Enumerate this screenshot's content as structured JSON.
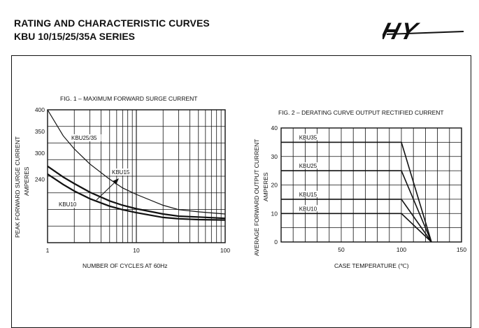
{
  "header": {
    "title": "RATING AND CHARACTERISTIC CURVES",
    "series": "KBU 10/15/25/35A  SERIES",
    "logo_text": "HY"
  },
  "chart_data": [
    {
      "type": "line",
      "title": "FIG. 1 – MAXIMUM FORWARD SURGE CURRENT",
      "xlabel": "NUMBER OF CYCLES AT 60Hz",
      "ylabel_line1": "PEAK FORWARD SURGE CURRENT",
      "ylabel_line2": "AMPERES",
      "x_scale": "log",
      "xlim": [
        1,
        100
      ],
      "x_ticks": [
        "1",
        "10",
        "100"
      ],
      "y_ticks": [
        {
          "label": "400",
          "value": 400
        },
        {
          "label": "350",
          "value": 350
        },
        {
          "label": "300",
          "value": 300
        },
        {
          "label": "240",
          "value": 240
        }
      ],
      "grid": true,
      "series": [
        {
          "name": "KBU25/35",
          "x": [
            1,
            1.5,
            2,
            3,
            5,
            7,
            10,
            20,
            30,
            50,
            100
          ],
          "y": [
            400,
            340,
            310,
            275,
            240,
            220,
            205,
            180,
            170,
            165,
            160
          ]
        },
        {
          "name": "KBU15",
          "x": [
            1,
            1.5,
            2,
            3,
            5,
            7,
            10,
            20,
            30,
            50,
            100
          ],
          "y": [
            270,
            245,
            230,
            210,
            190,
            180,
            172,
            160,
            155,
            153,
            150
          ]
        },
        {
          "name": "KBU10",
          "x": [
            1,
            1.5,
            2,
            3,
            5,
            7,
            10,
            20,
            30,
            50,
            100
          ],
          "y": [
            252,
            228,
            213,
            195,
            178,
            170,
            163,
            152,
            149,
            147,
            146
          ]
        }
      ],
      "annotations": [
        "KBU25/35",
        "KBU15",
        "KBU10"
      ]
    },
    {
      "type": "line",
      "title": "FIG. 2 – DERATING CURVE OUTPUT RECTIFIED CURRENT",
      "xlabel": "CASE TEMPERATURE (℃)",
      "ylabel_line1": "AVERAGE FORWARD OUTPUT  CURRENT",
      "ylabel_line2": "AMPERES",
      "xlim": [
        0,
        150
      ],
      "ylim": [
        0,
        40
      ],
      "x_ticks": [
        "0",
        "50",
        "100",
        "150"
      ],
      "y_ticks": [
        "0",
        "10",
        "20",
        "30",
        "40"
      ],
      "grid": true,
      "series": [
        {
          "name": "KBU35",
          "x": [
            0,
            100,
            125
          ],
          "y": [
            35,
            35,
            0
          ]
        },
        {
          "name": "KBU25",
          "x": [
            0,
            100,
            125
          ],
          "y": [
            25,
            25,
            0
          ]
        },
        {
          "name": "KBU15",
          "x": [
            0,
            100,
            125
          ],
          "y": [
            15,
            15,
            0
          ]
        },
        {
          "name": "KBU10",
          "x": [
            0,
            100,
            125
          ],
          "y": [
            10,
            10,
            0
          ]
        }
      ]
    }
  ]
}
